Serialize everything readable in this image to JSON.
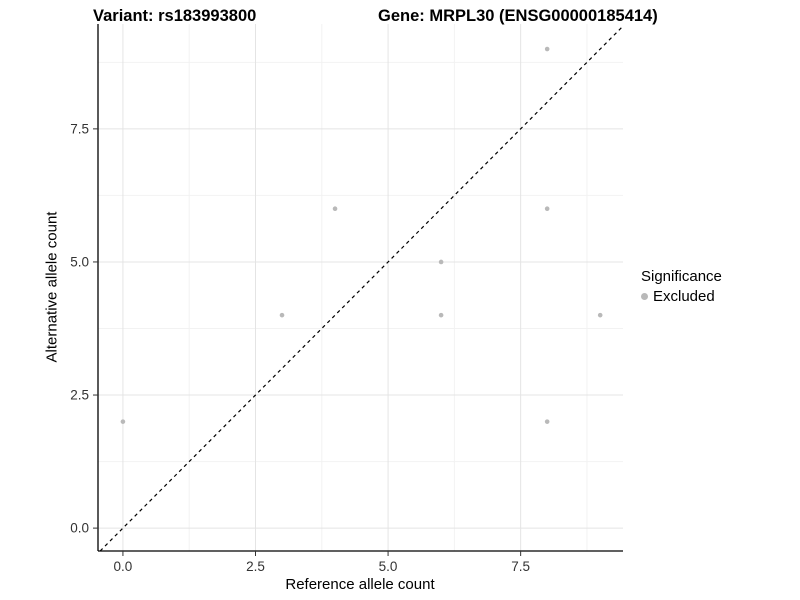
{
  "titles": {
    "variant": "Variant: rs183993800",
    "gene": "Gene: MRPL30 (ENSG00000185414)"
  },
  "legend": {
    "title": "Significance",
    "items": [
      {
        "label": "Excluded",
        "color": "#b9b9b9"
      }
    ]
  },
  "colors": {
    "point": "#b9b9b9",
    "axis_line": "#000000",
    "identity_line": "#000000",
    "tick_label": "#333333",
    "tick_mark": "#333333",
    "grid_major": "#e4e4e4",
    "grid_minor": "#f2f2f2",
    "background": "#ffffff"
  },
  "chart_data": {
    "type": "scatter",
    "title": "Variant: rs183993800 — Gene: MRPL30 (ENSG00000185414)",
    "xlabel": "Reference allele count",
    "ylabel": "Alternative allele count",
    "xlim": [
      -0.47,
      9.43
    ],
    "ylim": [
      -0.43,
      9.47
    ],
    "x_ticks": [
      0,
      2.5,
      5,
      7.5
    ],
    "x_tick_labels": [
      "0.0",
      "2.5",
      "5.0",
      "7.5"
    ],
    "y_ticks": [
      0,
      2.5,
      5,
      7.5
    ],
    "y_tick_labels": [
      "0.0",
      "2.5",
      "5.0",
      "7.5"
    ],
    "x_minor_ticks": [
      1.25,
      3.75,
      6.25,
      8.75
    ],
    "y_minor_ticks": [
      1.25,
      3.75,
      6.25,
      8.75
    ],
    "grid": true,
    "legend_position": "right",
    "reference_line": {
      "type": "identity",
      "slope": 1,
      "intercept": 0,
      "style": "dashed"
    },
    "series": [
      {
        "name": "Excluded",
        "color": "#b9b9b9",
        "points": [
          [
            0,
            2
          ],
          [
            3,
            4
          ],
          [
            4,
            6
          ],
          [
            6,
            4
          ],
          [
            6,
            5
          ],
          [
            8,
            2
          ],
          [
            8,
            6
          ],
          [
            8,
            9
          ],
          [
            9,
            4
          ]
        ]
      }
    ]
  }
}
